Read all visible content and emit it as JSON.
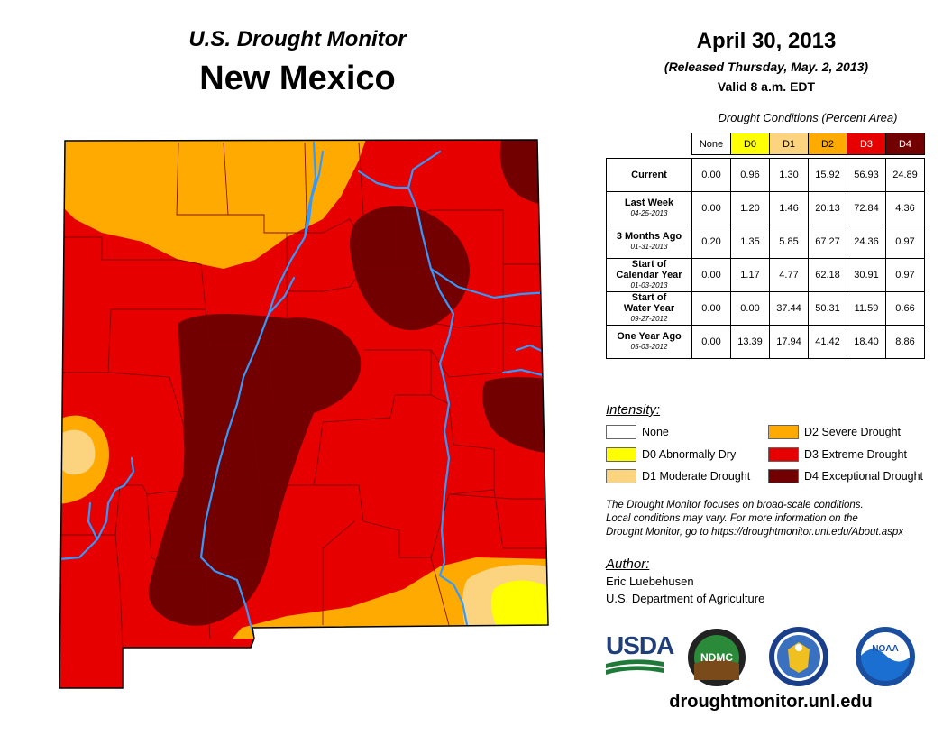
{
  "header": {
    "subtitle": "U.S. Drought Monitor",
    "title": "New Mexico",
    "date": "April 30, 2013",
    "released": "(Released Thursday, May. 2, 2013)",
    "valid": "Valid 8 a.m. EDT"
  },
  "table": {
    "caption": "Drought Conditions (Percent Area)",
    "columns": [
      {
        "label": "None",
        "color": "#ffffff"
      },
      {
        "label": "D0",
        "color": "#ffff00"
      },
      {
        "label": "D1",
        "color": "#fcd37f"
      },
      {
        "label": "D2",
        "color": "#ffaa00"
      },
      {
        "label": "D3",
        "color": "#e60000"
      },
      {
        "label": "D4",
        "color": "#730000"
      }
    ],
    "rows": [
      {
        "label": "Current",
        "label2": "",
        "date": "",
        "values": [
          "0.00",
          "0.96",
          "1.30",
          "15.92",
          "56.93",
          "24.89"
        ]
      },
      {
        "label": "Last Week",
        "label2": "",
        "date": "04-25-2013",
        "values": [
          "0.00",
          "1.20",
          "1.46",
          "20.13",
          "72.84",
          "4.36"
        ]
      },
      {
        "label": "3 Months Ago",
        "label2": "",
        "date": "01-31-2013",
        "values": [
          "0.20",
          "1.35",
          "5.85",
          "67.27",
          "24.36",
          "0.97"
        ]
      },
      {
        "label": "Start of",
        "label2": "Calendar Year",
        "date": "01-03-2013",
        "values": [
          "0.00",
          "1.17",
          "4.77",
          "62.18",
          "30.91",
          "0.97"
        ]
      },
      {
        "label": "Start of",
        "label2": "Water Year",
        "date": "09-27-2012",
        "values": [
          "0.00",
          "0.00",
          "37.44",
          "50.31",
          "11.59",
          "0.66"
        ]
      },
      {
        "label": "One Year Ago",
        "label2": "",
        "date": "05-03-2012",
        "values": [
          "0.00",
          "13.39",
          "17.94",
          "41.42",
          "18.40",
          "8.86"
        ]
      }
    ]
  },
  "legend": {
    "heading": "Intensity:",
    "items": [
      {
        "label": "None",
        "color": "#ffffff"
      },
      {
        "label": "D0 Abnormally Dry",
        "color": "#ffff00"
      },
      {
        "label": "D1 Moderate Drought",
        "color": "#fcd37f"
      },
      {
        "label": "D2 Severe Drought",
        "color": "#ffaa00"
      },
      {
        "label": "D3 Extreme Drought",
        "color": "#e60000"
      },
      {
        "label": "D4 Exceptional Drought",
        "color": "#730000"
      }
    ]
  },
  "note": {
    "line1": "The Drought Monitor focuses on broad-scale conditions.",
    "line2": "Local conditions may vary. For more information on the",
    "line3": "Drought Monitor, go to https://droughtmonitor.unl.edu/About.aspx"
  },
  "author": {
    "heading": "Author:",
    "name": "Eric Luebehusen",
    "org": "U.S. Department of Agriculture"
  },
  "logos": {
    "usda": "USDA",
    "ndmc": "NDMC",
    "noaa": "NOAA"
  },
  "map": {
    "colors": {
      "d1": "#fcd37f",
      "d2": "#ffaa00",
      "d3": "#e60000",
      "d4": "#730000",
      "d0": "#ffff00",
      "river": "#3399ff",
      "county": "#7a0000"
    }
  },
  "footer": {
    "url": "droughtmonitor.unl.edu"
  }
}
